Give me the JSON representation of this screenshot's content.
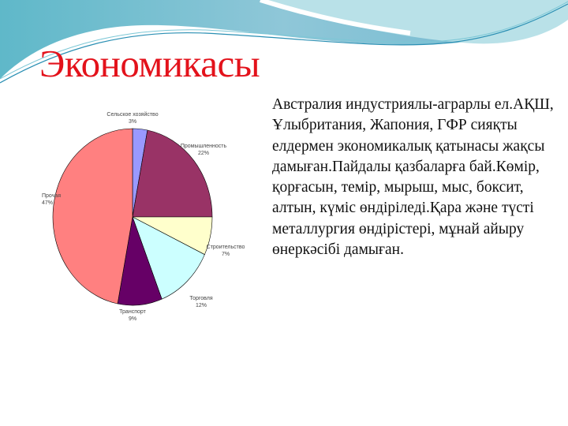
{
  "slide": {
    "title": "Экономикасы",
    "body": "Австралия индустриялы-аграрлы ел.АҚШ, Ұлыбритания, Жапония, ГФР сияқты елдермен экономикалық қатынасы жақсы дамыған.Пайдалы қазбаларға бай.Көмір, қорғасын, темір, мырыш, мыс, боксит, алтын, күміс өндіріледі.Қара және түсті металлургия өндірістері, мұнай айыру өнеркәсібі дамыған."
  },
  "chart_data": {
    "type": "pie",
    "categories": [
      "Сельское хозяйство",
      "Промышленность",
      "Строительство",
      "Торговля",
      "Транспорт",
      "Прочая"
    ],
    "values": [
      3,
      22,
      7,
      12,
      9,
      47
    ],
    "labels": [
      "3%",
      "22%",
      "7%",
      "12%",
      "9%",
      "47%"
    ],
    "colors": [
      "#9999ff",
      "#993366",
      "#ffffcc",
      "#ccffff",
      "#660066",
      "#ff8080"
    ],
    "start": "top",
    "direction": "clockwise"
  }
}
